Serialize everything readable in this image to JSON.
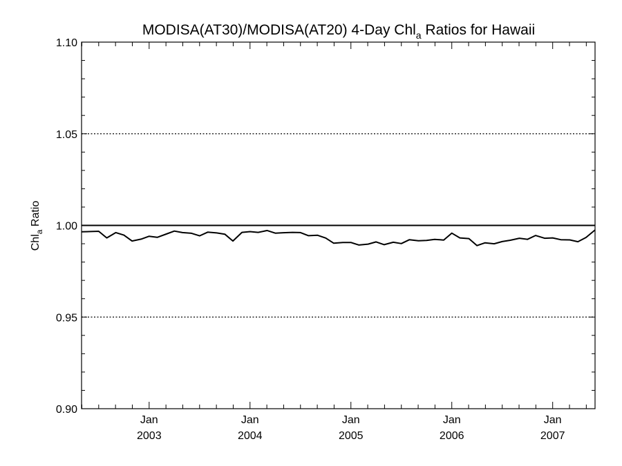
{
  "chart_data": {
    "type": "line",
    "title_main": "MODISA(AT30)/MODISA(AT20) 4-Day Chl",
    "title_sub": "a",
    "title_rest": " Ratios for Hawaii",
    "ylabel_main": "Chl",
    "ylabel_sub": "a",
    "ylabel_rest": " Ratio",
    "ylim": [
      0.9,
      1.1
    ],
    "xlim": [
      2002.33,
      2007.42
    ],
    "yticks": [
      {
        "value": 0.9,
        "label": "0.90"
      },
      {
        "value": 0.95,
        "label": "0.95"
      },
      {
        "value": 1.0,
        "label": "1.00"
      },
      {
        "value": 1.05,
        "label": "1.05"
      },
      {
        "value": 1.1,
        "label": "1.10"
      }
    ],
    "xticks": [
      {
        "value": 2003.0,
        "month": "Jan",
        "year": "2003"
      },
      {
        "value": 2004.0,
        "month": "Jan",
        "year": "2004"
      },
      {
        "value": 2005.0,
        "month": "Jan",
        "year": "2005"
      },
      {
        "value": 2006.0,
        "month": "Jan",
        "year": "2006"
      },
      {
        "value": 2007.0,
        "month": "Jan",
        "year": "2007"
      }
    ],
    "gridlines": "dotted at major y ticks",
    "reference_line": 1.0,
    "x": [
      2002.33,
      2002.5,
      2002.58,
      2002.67,
      2002.75,
      2002.83,
      2002.92,
      2003.0,
      2003.08,
      2003.17,
      2003.25,
      2003.33,
      2003.42,
      2003.5,
      2003.58,
      2003.67,
      2003.75,
      2003.83,
      2003.92,
      2004.0,
      2004.08,
      2004.17,
      2004.25,
      2004.33,
      2004.42,
      2004.5,
      2004.58,
      2004.67,
      2004.75,
      2004.83,
      2004.92,
      2005.0,
      2005.08,
      2005.17,
      2005.25,
      2005.33,
      2005.42,
      2005.5,
      2005.58,
      2005.67,
      2005.75,
      2005.83,
      2005.92,
      2006.0,
      2006.08,
      2006.17,
      2006.25,
      2006.33,
      2006.42,
      2006.5,
      2006.58,
      2006.67,
      2006.75,
      2006.83,
      2006.92,
      2007.0,
      2007.08,
      2007.17,
      2007.25,
      2007.33,
      2007.42
    ],
    "y": [
      0.9965,
      0.9968,
      0.9932,
      0.9961,
      0.9947,
      0.9915,
      0.9925,
      0.9941,
      0.9935,
      0.9953,
      0.9969,
      0.9961,
      0.9957,
      0.9943,
      0.9963,
      0.9959,
      0.9952,
      0.9915,
      0.9962,
      0.9966,
      0.9962,
      0.9972,
      0.9958,
      0.996,
      0.9962,
      0.9961,
      0.9944,
      0.9946,
      0.9931,
      0.9903,
      0.9907,
      0.9907,
      0.9893,
      0.9898,
      0.991,
      0.9895,
      0.9908,
      0.9901,
      0.9922,
      0.9916,
      0.9918,
      0.9924,
      0.992,
      0.9958,
      0.9932,
      0.9928,
      0.989,
      0.9905,
      0.99,
      0.9912,
      0.9919,
      0.993,
      0.9924,
      0.9945,
      0.993,
      0.9932,
      0.9922,
      0.9921,
      0.9911,
      0.9934,
      0.9975
    ]
  }
}
